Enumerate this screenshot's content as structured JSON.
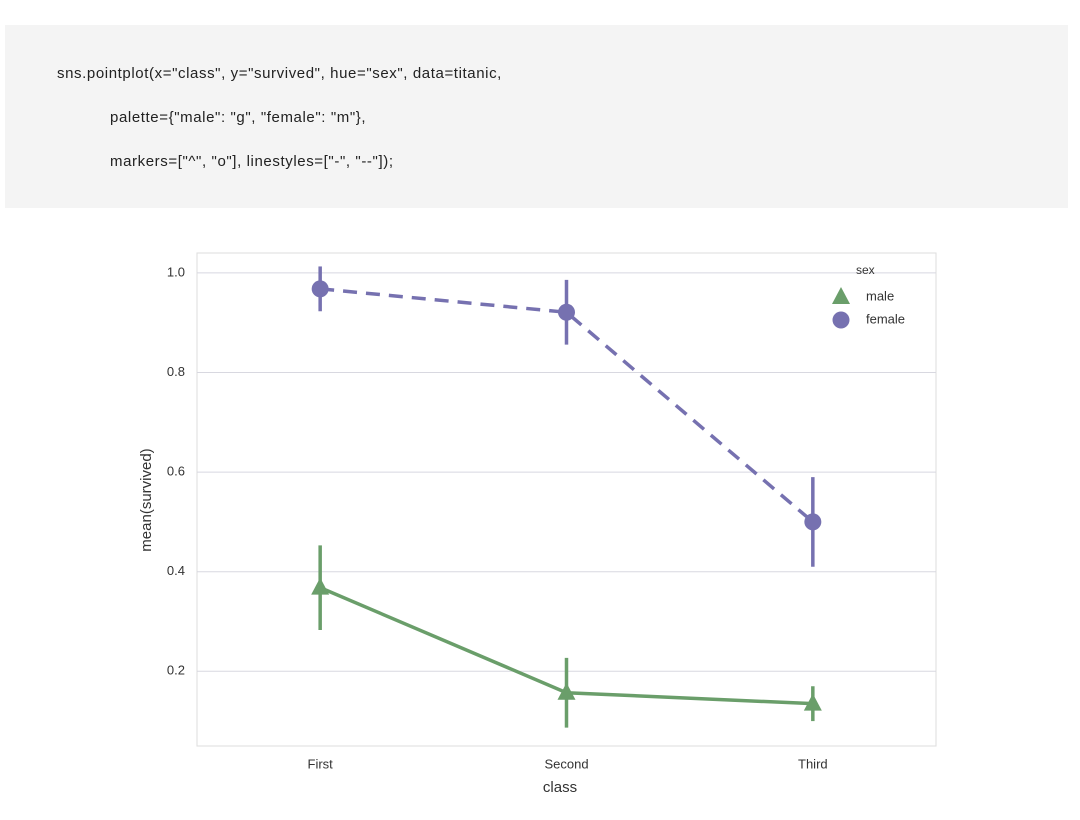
{
  "code": {
    "lines": [
      "sns.pointplot(x=\"class\", y=\"survived\", hue=\"sex\", data=titanic,",
      "palette={\"male\": \"g\", \"female\": \"m\"},",
      "markers=[\"^\", \"o\"], linestyles=[\"-\", \"--\"]);"
    ]
  },
  "chart_data": {
    "type": "point",
    "x_label": "class",
    "y_label": "mean(survived)",
    "categories": [
      "First",
      "Second",
      "Third"
    ],
    "series": [
      {
        "name": "male",
        "color": "#6a9e6a",
        "marker": "^",
        "linestyle": "-",
        "values": [
          0.368,
          0.157,
          0.135
        ],
        "errors": [
          0.085,
          0.07,
          0.035
        ]
      },
      {
        "name": "female",
        "color": "#7671b0",
        "marker": "o",
        "linestyle": "--",
        "values": [
          0.968,
          0.921,
          0.5
        ],
        "errors": [
          0.045,
          0.065,
          0.09
        ]
      }
    ],
    "ylim": [
      0.05,
      1.04
    ],
    "yticks": [
      0.2,
      0.4,
      0.6,
      0.8,
      {
        "value": 1,
        "label": "1.0"
      }
    ],
    "grid": true,
    "legend_title": "sex",
    "legend_position": "upper right"
  }
}
